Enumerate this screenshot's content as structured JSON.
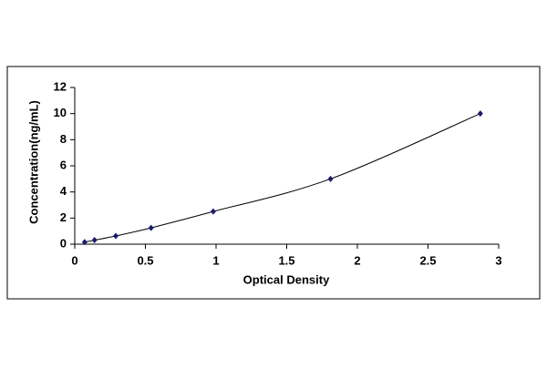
{
  "chart_data": {
    "type": "scatter",
    "x_label": "Optical Density",
    "y_label": "Concentration(ng/mL)",
    "x": [
      0.07,
      0.14,
      0.29,
      0.54,
      0.98,
      1.81,
      2.87
    ],
    "values": [
      0.16,
      0.31,
      0.63,
      1.25,
      2.5,
      5,
      10
    ],
    "color": "#1a1a6e",
    "line_color": "#000000",
    "smooth_line": true,
    "xlim": [
      0,
      3
    ],
    "xticks": [
      0,
      0.5,
      1,
      1.5,
      2,
      2.5,
      3
    ],
    "ylim": [
      0,
      12
    ],
    "yticks": [
      0,
      2,
      4,
      6,
      8,
      10,
      12
    ],
    "grid": false
  }
}
